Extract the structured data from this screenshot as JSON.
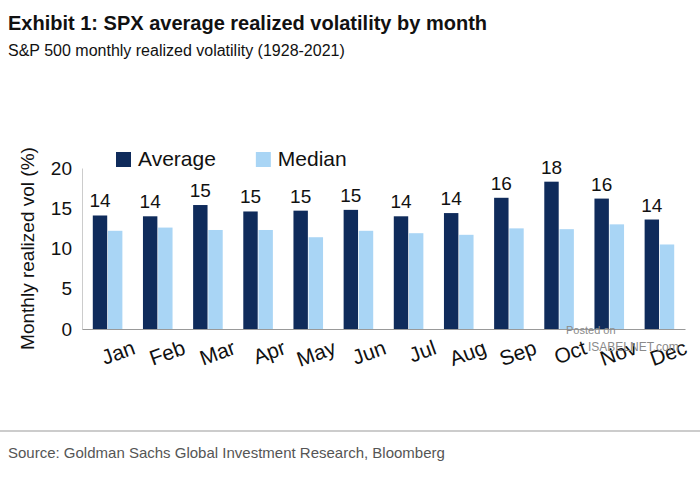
{
  "chart_data": {
    "type": "bar",
    "title": "Exhibit 1: SPX average realized volatility by month",
    "subtitle": "S&P 500 monthly realized volatility (1928-2021)",
    "y_label": "Monthly realized vol (%)",
    "source": "Source: Goldman Sachs Global Investment Research, Bloomberg",
    "annotations": [
      "Posted on",
      "ISABELNET.com"
    ],
    "categories": [
      "Jan",
      "Feb",
      "Mar",
      "Apr",
      "May",
      "Jun",
      "Jul",
      "Aug",
      "Sep",
      "Oct",
      "Nov",
      "Dec"
    ],
    "series": [
      {
        "name": "Average",
        "color": "#0f2b5b",
        "values": [
          14.1,
          14.0,
          15.4,
          14.6,
          14.7,
          14.8,
          14.0,
          14.4,
          16.3,
          18.3,
          16.2,
          13.6
        ],
        "data_labels": true,
        "value_labels": [
          "14",
          "14",
          "15",
          "15",
          "15",
          "15",
          "14",
          "14",
          "16",
          "18",
          "16",
          "14"
        ]
      },
      {
        "name": "Median",
        "color": "#a9d5f5",
        "values": [
          12.2,
          12.6,
          12.3,
          12.3,
          11.4,
          12.2,
          11.9,
          11.7,
          12.5,
          12.4,
          13.0,
          10.5
        ]
      }
    ],
    "ylim": [
      0,
      20
    ],
    "yticks": [
      0,
      5,
      10,
      15,
      20
    ],
    "grid": false,
    "legend": "upper left"
  }
}
